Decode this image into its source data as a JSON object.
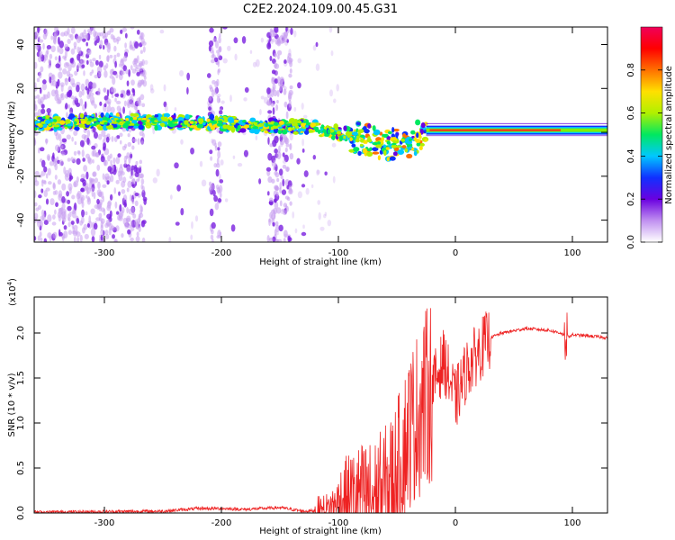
{
  "title": "C2E2.2024.109.00.45.G31",
  "chart_data": [
    {
      "type": "heatmap",
      "name": "spectrogram",
      "title": "",
      "xlabel": "Height of straight line (km)",
      "ylabel": "Frequency (Hz)",
      "xlim": [
        -360,
        130
      ],
      "ylim": [
        -50,
        48
      ],
      "xticks": [
        -300,
        -200,
        -100,
        0,
        100
      ],
      "yticks": [
        -40,
        -20,
        0,
        20,
        40
      ],
      "colorbar": {
        "label": "Normalized spectral amplitude",
        "range": [
          0.0,
          1.0
        ],
        "ticks": [
          0.0,
          0.2,
          0.4,
          0.6,
          0.8
        ],
        "colors": [
          "#ffffff",
          "#c090f0",
          "#6a00e0",
          "#1030ff",
          "#00c8ff",
          "#00e860",
          "#b0f000",
          "#ffe000",
          "#ff7000",
          "#ff0000",
          "#f0005a"
        ]
      },
      "ridge": {
        "x": [
          -355,
          -300,
          -250,
          -200,
          -150,
          -120,
          -100,
          -80,
          -60,
          -45,
          -30,
          -20,
          0,
          50,
          100,
          128
        ],
        "y": [
          4,
          5,
          5,
          4,
          3,
          2,
          0,
          -3,
          -6,
          -5,
          -2,
          1,
          1,
          1,
          1,
          1
        ]
      }
    },
    {
      "type": "line",
      "name": "snr",
      "title": "",
      "xlabel": "Height of straight line (km)",
      "ylabel": "SNR (10 * v/v)",
      "multiplier": "(x10",
      "multiplier_exp": "4",
      "multiplier_close": ")",
      "xlim": [
        -360,
        130
      ],
      "ylim": [
        0,
        2.4
      ],
      "xticks": [
        -300,
        -200,
        -100,
        0,
        100
      ],
      "yticks": [
        0.0,
        0.5,
        1.0,
        1.5,
        2.0
      ],
      "color": "#ee2222",
      "series": [
        {
          "name": "SNR",
          "x": [
            -360,
            -300,
            -250,
            -220,
            -200,
            -180,
            -150,
            -130,
            -110,
            -100,
            -90,
            -80,
            -70,
            -60,
            -50,
            -40,
            -30,
            -20,
            -10,
            0,
            10,
            20,
            30,
            40,
            60,
            80,
            90,
            95,
            100,
            110,
            120,
            128
          ],
          "y": [
            0.01,
            0.015,
            0.02,
            0.05,
            0.05,
            0.04,
            0.06,
            0.02,
            0.03,
            0.12,
            0.2,
            0.22,
            0.18,
            0.25,
            0.45,
            0.9,
            1.15,
            1.4,
            1.7,
            1.25,
            1.6,
            1.8,
            1.95,
            2.0,
            2.05,
            2.03,
            2.0,
            1.95,
            1.98,
            1.97,
            1.96,
            1.95
          ]
        }
      ]
    }
  ]
}
